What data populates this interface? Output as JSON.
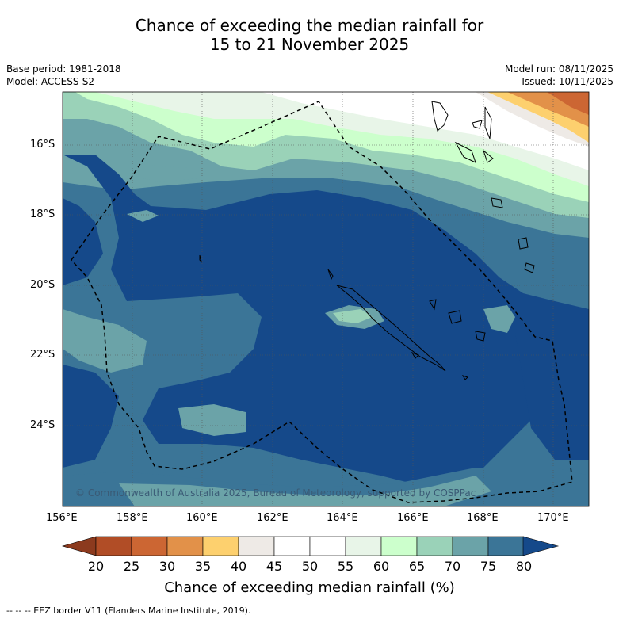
{
  "title": {
    "line1": "Chance of exceeding the median rainfall for",
    "line2": "15 to 21 November 2025"
  },
  "meta": {
    "base_period": "Base period: 1981-2018",
    "model": "Model: ACCESS-S2",
    "model_run": "Model run: 08/11/2025",
    "issued": "Issued: 10/11/2025"
  },
  "axes": {
    "lat_ticks": [
      "16°S",
      "18°S",
      "20°S",
      "22°S",
      "24°S"
    ],
    "lon_ticks": [
      "156°E",
      "158°E",
      "160°E",
      "162°E",
      "164°E",
      "166°E",
      "168°E",
      "170°E"
    ]
  },
  "copyright": "© Commonwealth of Australia 2025, Bureau of Meteorology, supported by COSPPac",
  "colorbar": {
    "title": "Chance of exceeding median rainfall (%)",
    "labels": [
      "20",
      "25",
      "30",
      "35",
      "40",
      "45",
      "50",
      "55",
      "60",
      "65",
      "70",
      "75",
      "80"
    ],
    "colors": [
      "#8c3a1e",
      "#b14d26",
      "#cc6633",
      "#e29149",
      "#fdd06e",
      "#eeeae6",
      "#ffffff",
      "#ffffff",
      "#e8f5e8",
      "#ccffcc",
      "#9ad2b8",
      "#6ba3a8",
      "#3b7597",
      "#15498a"
    ]
  },
  "footer": "--  --  -- EEZ border V11 (Flanders Marine Institute, 2019)."
}
